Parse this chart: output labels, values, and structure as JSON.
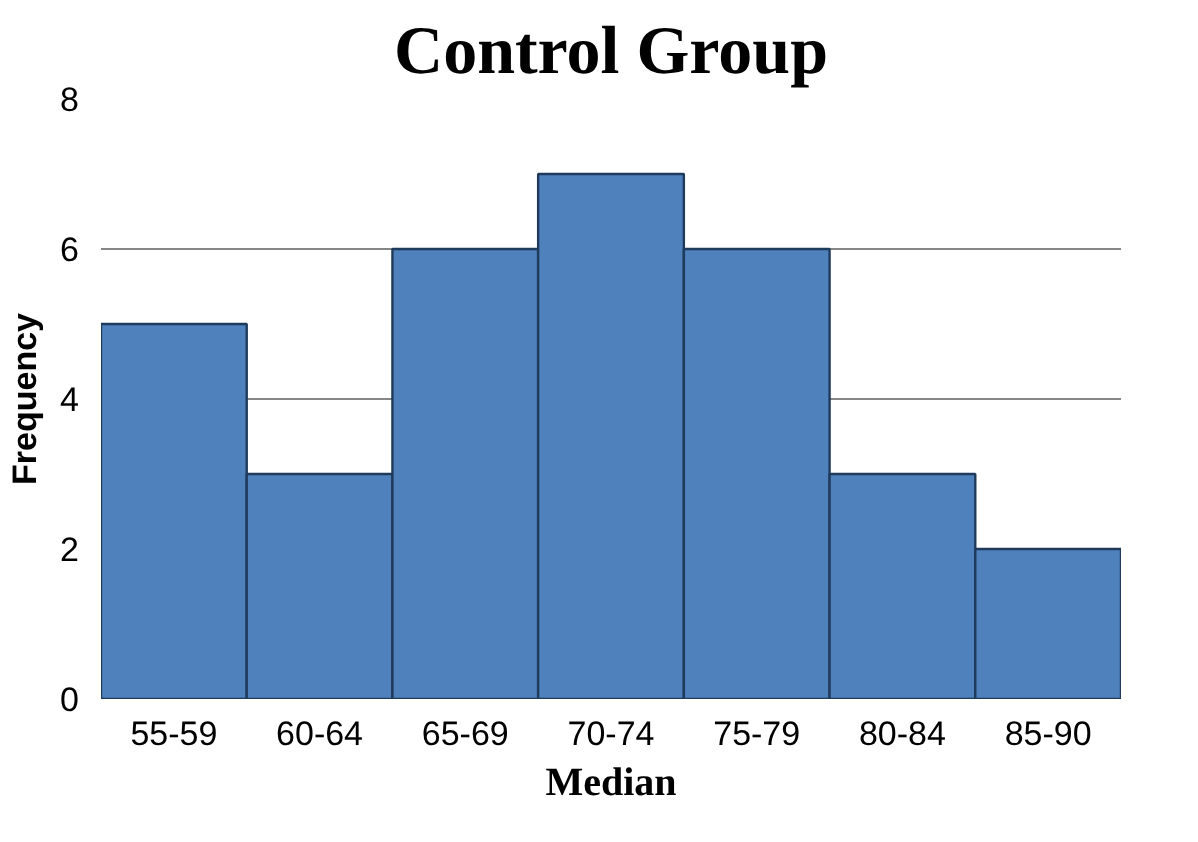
{
  "chart_data": {
    "type": "bar",
    "title": "Control Group",
    "xlabel": "Median",
    "ylabel": "Frequency",
    "categories": [
      "55-59",
      "60-64",
      "65-69",
      "70-74",
      "75-79",
      "80-84",
      "85-90"
    ],
    "values": [
      5,
      3,
      6,
      7,
      6,
      3,
      2
    ],
    "color": "#4f81bd",
    "ylim": [
      0,
      8
    ],
    "yticks": [
      0,
      2,
      4,
      6,
      8
    ],
    "grid": "y"
  }
}
